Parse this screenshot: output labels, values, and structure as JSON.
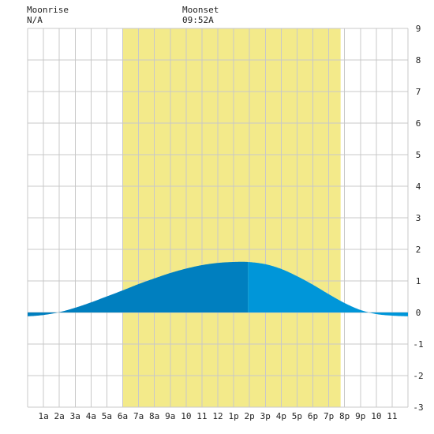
{
  "header": {
    "moonrise_label": "Moonrise",
    "moonrise_value": "N/A",
    "moonset_label": "Moonset",
    "moonset_value": "09:52A"
  },
  "colors": {
    "background": "#ffffff",
    "daylight_band": "#f3ea8a",
    "grid": "#c8c8c8",
    "tide_past": "#007fbf",
    "tide_future": "#0096d9",
    "zero_line": "#0a3c6e"
  },
  "chart_data": {
    "type": "area",
    "title": "",
    "xlabel": "",
    "ylabel": "",
    "xlim": [
      0,
      24
    ],
    "ylim": [
      -3,
      9
    ],
    "grid": true,
    "x_tick_labels": [
      {
        "x": 1,
        "label": "1a"
      },
      {
        "x": 2,
        "label": "2a"
      },
      {
        "x": 3,
        "label": "3a"
      },
      {
        "x": 4,
        "label": "4a"
      },
      {
        "x": 5,
        "label": "5a"
      },
      {
        "x": 6,
        "label": "6a"
      },
      {
        "x": 7,
        "label": "7a"
      },
      {
        "x": 8,
        "label": "8a"
      },
      {
        "x": 9,
        "label": "9a"
      },
      {
        "x": 10,
        "label": "10"
      },
      {
        "x": 11,
        "label": "11"
      },
      {
        "x": 12,
        "label": "12"
      },
      {
        "x": 13,
        "label": "1p"
      },
      {
        "x": 14,
        "label": "2p"
      },
      {
        "x": 15,
        "label": "3p"
      },
      {
        "x": 16,
        "label": "4p"
      },
      {
        "x": 17,
        "label": "5p"
      },
      {
        "x": 18,
        "label": "6p"
      },
      {
        "x": 19,
        "label": "7p"
      },
      {
        "x": 20,
        "label": "8p"
      },
      {
        "x": 21,
        "label": "9p"
      },
      {
        "x": 22,
        "label": "10"
      },
      {
        "x": 23,
        "label": "11"
      }
    ],
    "y_ticks": [
      -3,
      -2,
      -1,
      0,
      1,
      2,
      3,
      4,
      5,
      6,
      7,
      8,
      9
    ],
    "daylight": {
      "start": 6,
      "end": 19.75
    },
    "current_time": 13.9,
    "series": [
      {
        "x": [
          0,
          1,
          2,
          3,
          4,
          5,
          6,
          7,
          8,
          9,
          10,
          11,
          12,
          13,
          13.9,
          15,
          16,
          17,
          18,
          19,
          20,
          21,
          22,
          23,
          24
        ],
        "values": [
          -0.12,
          -0.08,
          0.01,
          0.15,
          0.32,
          0.51,
          0.7,
          0.9,
          1.08,
          1.25,
          1.39,
          1.5,
          1.57,
          1.6,
          1.6,
          1.53,
          1.38,
          1.15,
          0.88,
          0.58,
          0.3,
          0.08,
          -0.05,
          -0.1,
          -0.12
        ]
      }
    ]
  }
}
